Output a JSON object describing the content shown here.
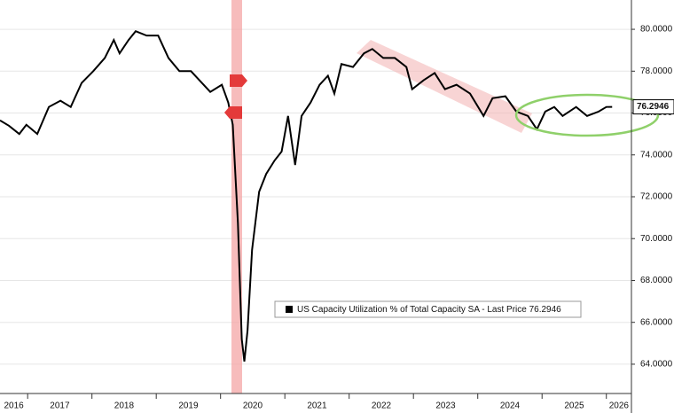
{
  "chart_data": {
    "type": "line",
    "legend": "US Capacity Utilization % of Total Capacity SA - Last Price 76.2946",
    "xlim": [
      2016.57,
      2026.39
    ],
    "xticks": [
      2016,
      2017,
      2018,
      2019,
      2020,
      2021,
      2022,
      2023,
      2024,
      2025,
      2026
    ],
    "ylim": [
      62.6,
      81.4
    ],
    "yticks": [
      {
        "value": 64,
        "label": "64.0000"
      },
      {
        "value": 66,
        "label": "66.0000"
      },
      {
        "value": 68,
        "label": "68.0000"
      },
      {
        "value": 70,
        "label": "70.0000"
      },
      {
        "value": 72,
        "label": "72.0000"
      },
      {
        "value": 74,
        "label": "74.0000"
      },
      {
        "value": 76,
        "label": "76.0000"
      },
      {
        "value": 78,
        "label": "78.0000"
      },
      {
        "value": 80,
        "label": "80.0000"
      }
    ],
    "grid": true,
    "series": [
      {
        "name": "US Capacity Utilization % of Total Capacity SA",
        "color": "#000000",
        "x": [
          2016.57,
          2016.71,
          2016.87,
          2016.98,
          2017.15,
          2017.33,
          2017.51,
          2017.67,
          2017.84,
          2018.02,
          2018.2,
          2018.34,
          2018.43,
          2018.57,
          2018.68,
          2018.85,
          2019.03,
          2019.19,
          2019.36,
          2019.54,
          2019.67,
          2019.84,
          2020.02,
          2020.12,
          2020.19,
          2020.27,
          2020.33,
          2020.37,
          2020.42,
          2020.49,
          2020.6,
          2020.71,
          2020.84,
          2020.95,
          2021.05,
          2021.16,
          2021.26,
          2021.4,
          2021.54,
          2021.67,
          2021.77,
          2021.88,
          2022.06,
          2022.23,
          2022.36,
          2022.53,
          2022.71,
          2022.89,
          2022.98,
          2023.16,
          2023.33,
          2023.49,
          2023.67,
          2023.88,
          2024.09,
          2024.23,
          2024.43,
          2024.6,
          2024.78,
          2024.92,
          2025.05,
          2025.19,
          2025.32,
          2025.53,
          2025.7,
          2025.88,
          2026.0,
          2026.09
        ],
        "values": [
          75.65,
          75.39,
          75.0,
          75.44,
          75.0,
          76.29,
          76.59,
          76.29,
          77.44,
          78.0,
          78.63,
          79.49,
          78.85,
          79.49,
          79.91,
          79.7,
          79.7,
          78.63,
          78.0,
          78.0,
          77.57,
          77.01,
          77.35,
          76.5,
          75.44,
          70.74,
          65.2,
          64.13,
          65.62,
          69.46,
          72.24,
          73.09,
          73.73,
          74.16,
          75.86,
          73.52,
          75.86,
          76.5,
          77.35,
          77.78,
          76.93,
          78.34,
          78.2,
          78.85,
          79.06,
          78.63,
          78.63,
          78.2,
          77.14,
          77.57,
          77.91,
          77.14,
          77.35,
          76.93,
          75.86,
          76.71,
          76.8,
          76.07,
          75.86,
          75.22,
          76.07,
          76.29,
          75.86,
          76.29,
          75.86,
          76.07,
          76.29,
          76.2946
        ]
      }
    ]
  }
}
